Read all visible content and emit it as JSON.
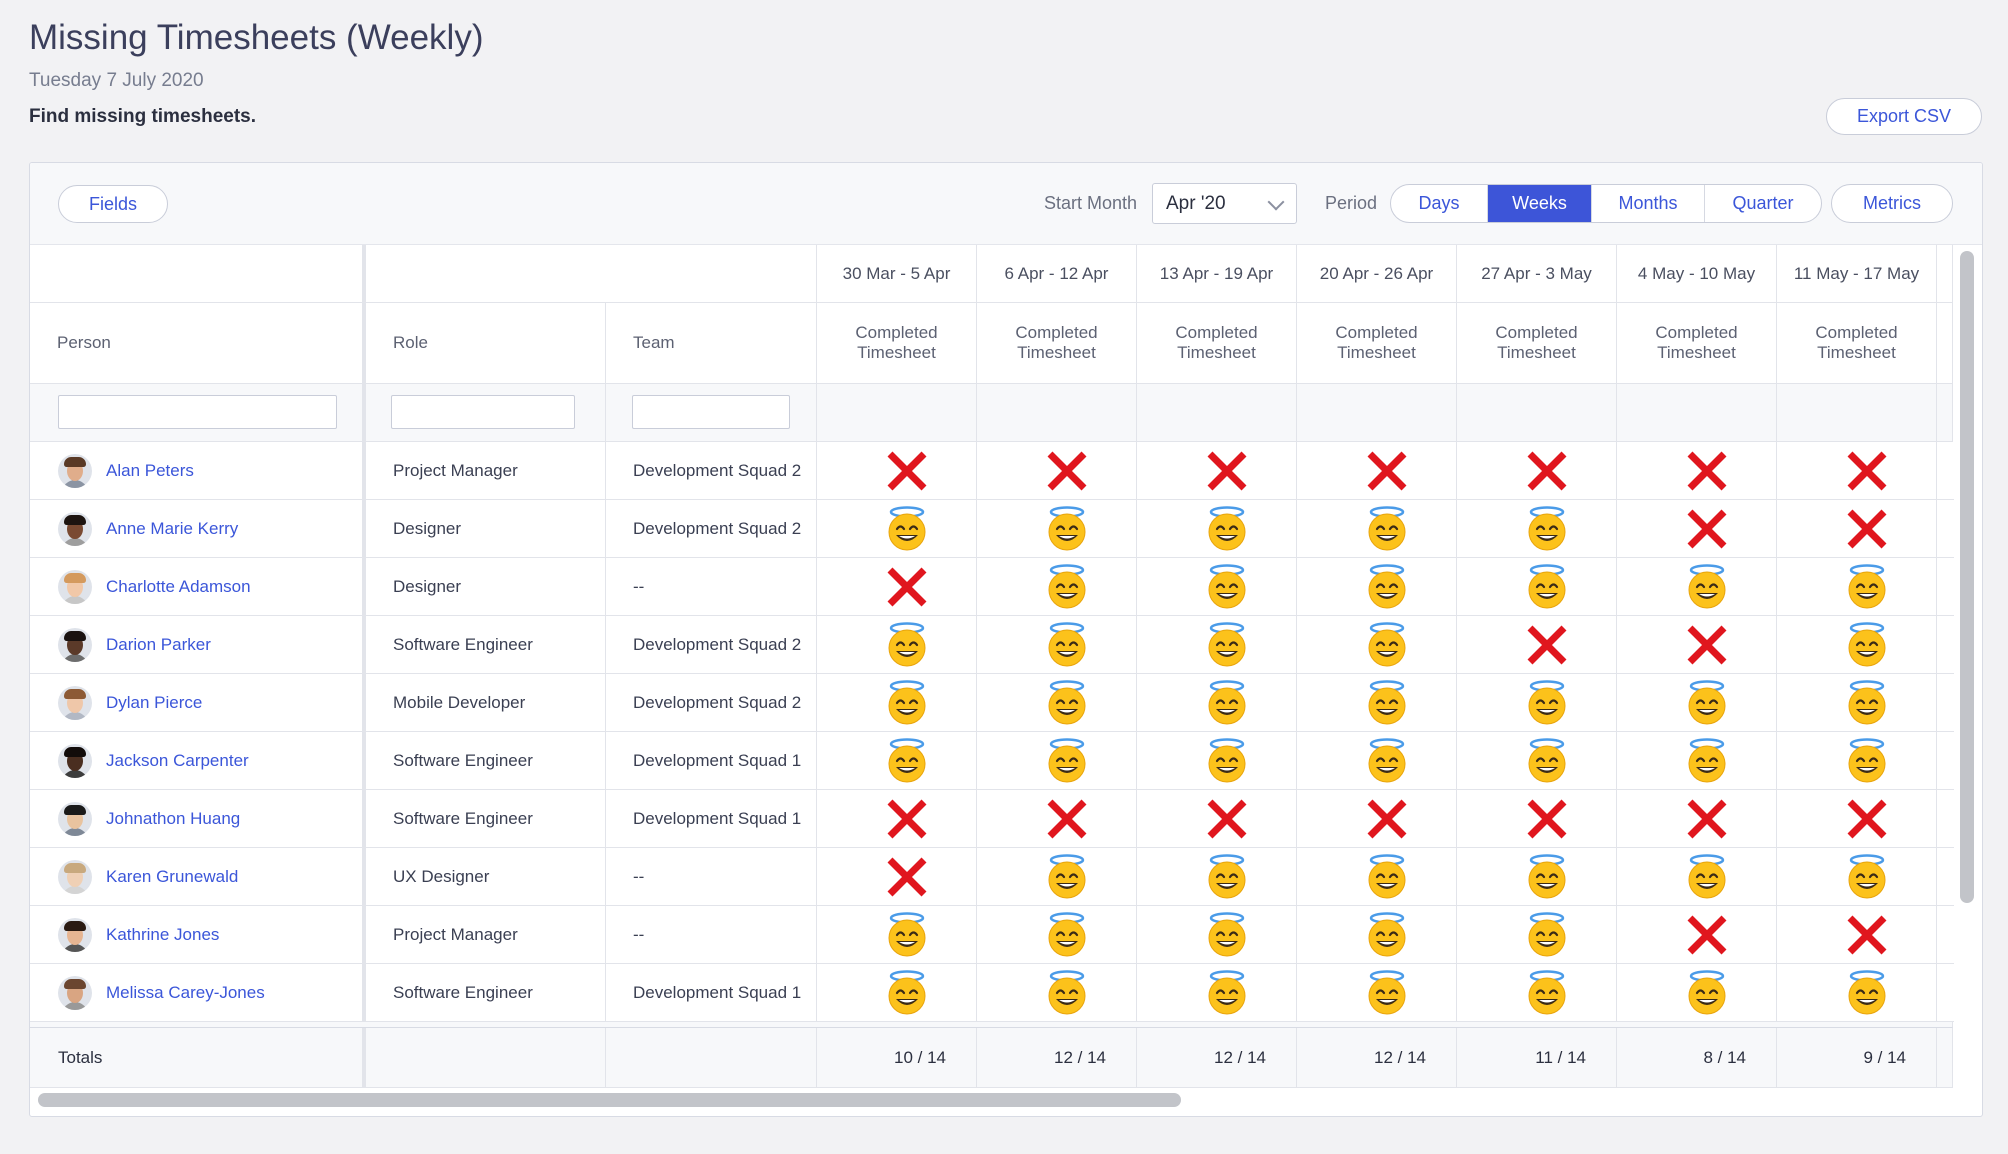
{
  "page": {
    "title": "Missing Timesheets (Weekly)",
    "date": "Tuesday 7 July 2020",
    "description": "Find missing timesheets.",
    "export_label": "Export CSV"
  },
  "toolbar": {
    "fields_label": "Fields",
    "start_month_label": "Start Month",
    "start_month_value": "Apr '20",
    "period_label": "Period",
    "period_options": [
      "Days",
      "Weeks",
      "Months",
      "Quarter"
    ],
    "period_selected": "Weeks",
    "metrics_label": "Metrics"
  },
  "table": {
    "columns": {
      "person": "Person",
      "role": "Role",
      "team": "Team"
    },
    "weeks": [
      "30 Mar - 5 Apr",
      "6 Apr - 12 Apr",
      "13 Apr - 19 Apr",
      "20 Apr - 26 Apr",
      "27 Apr - 3 May",
      "4 May - 10 May",
      "11 May - 17 May"
    ],
    "metric_label": "Completed Timesheet",
    "rows": [
      {
        "name": "Alan Peters",
        "role": "Project Manager",
        "team": "Development Squad 2",
        "marks": [
          "x",
          "x",
          "x",
          "x",
          "x",
          "x",
          "x"
        ]
      },
      {
        "name": "Anne Marie Kerry",
        "role": "Designer",
        "team": "Development Squad 2",
        "marks": [
          "ok",
          "ok",
          "ok",
          "ok",
          "ok",
          "x",
          "x"
        ]
      },
      {
        "name": "Charlotte Adamson",
        "role": "Designer",
        "team": "--",
        "marks": [
          "x",
          "ok",
          "ok",
          "ok",
          "ok",
          "ok",
          "ok"
        ]
      },
      {
        "name": "Darion Parker",
        "role": "Software Engineer",
        "team": "Development Squad 2",
        "marks": [
          "ok",
          "ok",
          "ok",
          "ok",
          "x",
          "x",
          "ok"
        ]
      },
      {
        "name": "Dylan Pierce",
        "role": "Mobile Developer",
        "team": "Development Squad 2",
        "marks": [
          "ok",
          "ok",
          "ok",
          "ok",
          "ok",
          "ok",
          "ok"
        ]
      },
      {
        "name": "Jackson Carpenter",
        "role": "Software Engineer",
        "team": "Development Squad 1",
        "marks": [
          "ok",
          "ok",
          "ok",
          "ok",
          "ok",
          "ok",
          "ok"
        ]
      },
      {
        "name": "Johnathon Huang",
        "role": "Software Engineer",
        "team": "Development Squad 1",
        "marks": [
          "x",
          "x",
          "x",
          "x",
          "x",
          "x",
          "x"
        ]
      },
      {
        "name": "Karen Grunewald",
        "role": "UX Designer",
        "team": "--",
        "marks": [
          "x",
          "ok",
          "ok",
          "ok",
          "ok",
          "ok",
          "ok"
        ]
      },
      {
        "name": "Kathrine Jones",
        "role": "Project Manager",
        "team": "--",
        "marks": [
          "ok",
          "ok",
          "ok",
          "ok",
          "ok",
          "x",
          "x"
        ]
      },
      {
        "name": "Melissa Carey-Jones",
        "role": "Software Engineer",
        "team": "Development Squad 1",
        "marks": [
          "ok",
          "ok",
          "ok",
          "ok",
          "ok",
          "ok",
          "ok"
        ]
      }
    ],
    "totals_label": "Totals",
    "totals": [
      "10 / 14",
      "12 / 14",
      "12 / 14",
      "12 / 14",
      "11 / 14",
      "8 / 14",
      "9 / 14"
    ]
  },
  "icons": {
    "missing": "cross-mark-icon",
    "completed": "smiling-face-with-halo-icon"
  },
  "colors": {
    "accent": "#3d55d8",
    "cross": "#e0161e",
    "link": "#3b56d9"
  }
}
